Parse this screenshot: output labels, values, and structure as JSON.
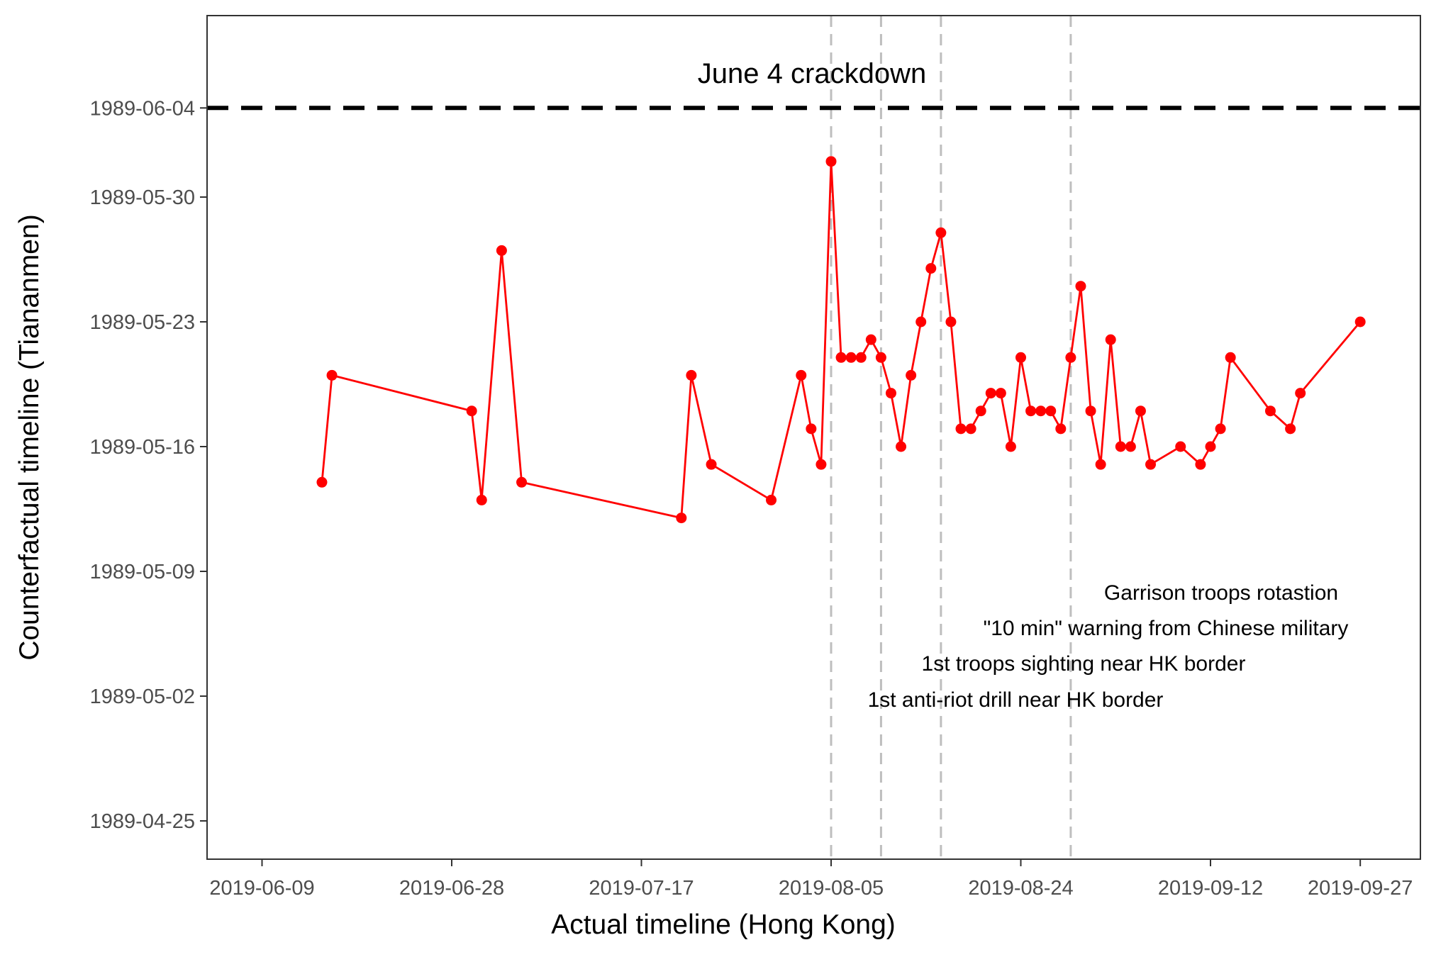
{
  "chart_data": {
    "type": "line",
    "xlabel": "Actual timeline (Hong Kong)",
    "ylabel": "Counterfactual timeline (Tiananmen)",
    "x_ticks": [
      "2019-06-09",
      "2019-06-28",
      "2019-07-17",
      "2019-08-05",
      "2019-08-24",
      "2019-09-12",
      "2019-09-27"
    ],
    "y_ticks": [
      "1989-04-25",
      "1989-05-02",
      "1989-05-09",
      "1989-05-16",
      "1989-05-23",
      "1989-05-30",
      "1989-06-04"
    ],
    "xlim": [
      "2019-06-04",
      "2019-09-28"
    ],
    "ylim": [
      "1989-04-23",
      "1989-06-10"
    ],
    "grid": false,
    "series": [
      {
        "color": "#ff0000",
        "points": [
          {
            "x": "2019-06-15",
            "y": "1989-05-14"
          },
          {
            "x": "2019-06-16",
            "y": "1989-05-20"
          },
          {
            "x": "2019-06-30",
            "y": "1989-05-18"
          },
          {
            "x": "2019-07-01",
            "y": "1989-05-13"
          },
          {
            "x": "2019-07-03",
            "y": "1989-05-27"
          },
          {
            "x": "2019-07-05",
            "y": "1989-05-14"
          },
          {
            "x": "2019-07-21",
            "y": "1989-05-12"
          },
          {
            "x": "2019-07-22",
            "y": "1989-05-20"
          },
          {
            "x": "2019-07-24",
            "y": "1989-05-15"
          },
          {
            "x": "2019-07-30",
            "y": "1989-05-13"
          },
          {
            "x": "2019-08-02",
            "y": "1989-05-20"
          },
          {
            "x": "2019-08-03",
            "y": "1989-05-17"
          },
          {
            "x": "2019-08-04",
            "y": "1989-05-15"
          },
          {
            "x": "2019-08-05",
            "y": "1989-06-01"
          },
          {
            "x": "2019-08-06",
            "y": "1989-05-21"
          },
          {
            "x": "2019-08-07",
            "y": "1989-05-21"
          },
          {
            "x": "2019-08-08",
            "y": "1989-05-21"
          },
          {
            "x": "2019-08-09",
            "y": "1989-05-22"
          },
          {
            "x": "2019-08-10",
            "y": "1989-05-21"
          },
          {
            "x": "2019-08-11",
            "y": "1989-05-19"
          },
          {
            "x": "2019-08-12",
            "y": "1989-05-16"
          },
          {
            "x": "2019-08-13",
            "y": "1989-05-20"
          },
          {
            "x": "2019-08-14",
            "y": "1989-05-23"
          },
          {
            "x": "2019-08-15",
            "y": "1989-05-26"
          },
          {
            "x": "2019-08-16",
            "y": "1989-05-28"
          },
          {
            "x": "2019-08-17",
            "y": "1989-05-23"
          },
          {
            "x": "2019-08-18",
            "y": "1989-05-17"
          },
          {
            "x": "2019-08-19",
            "y": "1989-05-17"
          },
          {
            "x": "2019-08-20",
            "y": "1989-05-18"
          },
          {
            "x": "2019-08-21",
            "y": "1989-05-19"
          },
          {
            "x": "2019-08-22",
            "y": "1989-05-19"
          },
          {
            "x": "2019-08-23",
            "y": "1989-05-16"
          },
          {
            "x": "2019-08-24",
            "y": "1989-05-21"
          },
          {
            "x": "2019-08-25",
            "y": "1989-05-18"
          },
          {
            "x": "2019-08-26",
            "y": "1989-05-18"
          },
          {
            "x": "2019-08-27",
            "y": "1989-05-18"
          },
          {
            "x": "2019-08-28",
            "y": "1989-05-17"
          },
          {
            "x": "2019-08-29",
            "y": "1989-05-21"
          },
          {
            "x": "2019-08-30",
            "y": "1989-05-25"
          },
          {
            "x": "2019-08-31",
            "y": "1989-05-18"
          },
          {
            "x": "2019-09-01",
            "y": "1989-05-15"
          },
          {
            "x": "2019-09-02",
            "y": "1989-05-22"
          },
          {
            "x": "2019-09-03",
            "y": "1989-05-16"
          },
          {
            "x": "2019-09-04",
            "y": "1989-05-16"
          },
          {
            "x": "2019-09-05",
            "y": "1989-05-18"
          },
          {
            "x": "2019-09-06",
            "y": "1989-05-15"
          },
          {
            "x": "2019-09-09",
            "y": "1989-05-16"
          },
          {
            "x": "2019-09-11",
            "y": "1989-05-15"
          },
          {
            "x": "2019-09-12",
            "y": "1989-05-16"
          },
          {
            "x": "2019-09-13",
            "y": "1989-05-17"
          },
          {
            "x": "2019-09-14",
            "y": "1989-05-21"
          },
          {
            "x": "2019-09-18",
            "y": "1989-05-18"
          },
          {
            "x": "2019-09-20",
            "y": "1989-05-17"
          },
          {
            "x": "2019-09-21",
            "y": "1989-05-19"
          },
          {
            "x": "2019-09-27",
            "y": "1989-05-23"
          }
        ]
      }
    ],
    "hline": {
      "y": "1989-06-04",
      "label": "June 4 crackdown",
      "style": "dashed",
      "color": "#000000"
    },
    "vlines": [
      {
        "x": "2019-08-05",
        "label": "1st anti-riot drill near HK border"
      },
      {
        "x": "2019-08-10",
        "label": "1st troops sighting near HK border"
      },
      {
        "x": "2019-08-16",
        "label": "\"10 min\" warning from Chinese military"
      },
      {
        "x": "2019-08-29",
        "label": "Garrison troops rotastion"
      }
    ],
    "vline_color": "#bebebe",
    "marker_color": "#ff0000"
  }
}
